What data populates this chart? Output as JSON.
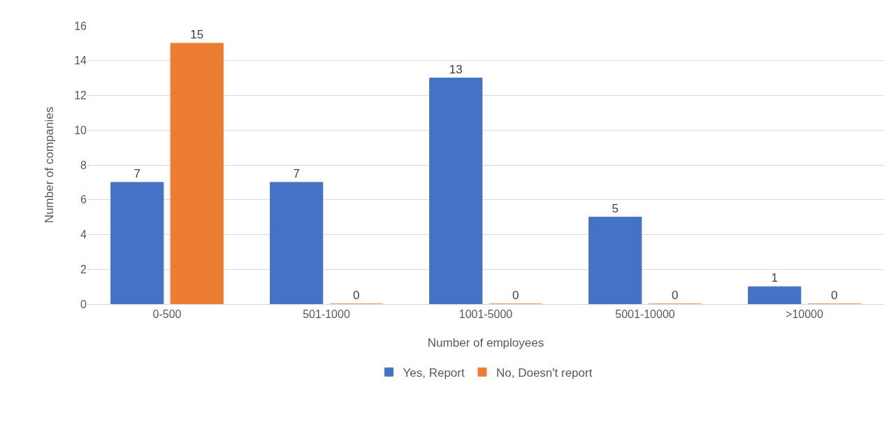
{
  "chart_data": {
    "type": "bar",
    "xlabel": "Number of employees",
    "ylabel": "Number of companies",
    "categories": [
      "0-500",
      "501-1000",
      "1001-5000",
      "5001-10000",
      ">10000"
    ],
    "series": [
      {
        "name": "Yes, Report",
        "color": "#4472c4",
        "values": [
          7,
          7,
          13,
          5,
          1
        ]
      },
      {
        "name": "No, Doesn't report",
        "color": "#ed7d31",
        "values": [
          15,
          0,
          0,
          0,
          0
        ]
      }
    ],
    "ylim": [
      0,
      16
    ],
    "yticks": [
      0,
      2,
      4,
      6,
      8,
      10,
      12,
      14,
      16
    ],
    "grid": "y",
    "legend": "bottom",
    "data_labels": true
  }
}
